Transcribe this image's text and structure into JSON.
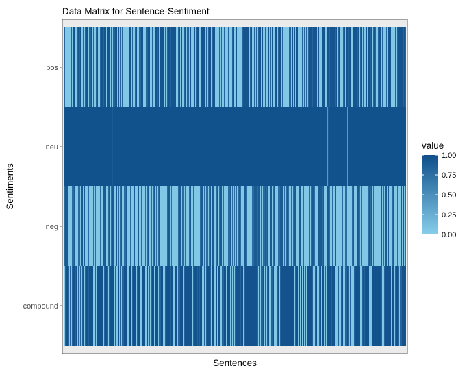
{
  "chart_data": {
    "type": "heatmap",
    "title": "Data Matrix for Sentence-Sentiment",
    "xlabel": "Sentences",
    "ylabel": "Sentiments",
    "rows": [
      "pos",
      "neu",
      "neg",
      "compound"
    ],
    "n_columns": 500,
    "color_scale": {
      "low": "#87ceeb",
      "high": "#0f4e8a",
      "domain": [
        0,
        1
      ]
    },
    "legend": {
      "title": "value",
      "placement": "right",
      "breaks": [
        "0.00",
        "0.25",
        "0.50",
        "0.75",
        "1.00"
      ]
    },
    "row_patterns": {
      "pos": {
        "high_fraction": 0.62,
        "high_value": 0.95,
        "low_value": 0.05
      },
      "neu": {
        "high_fraction": 0.996,
        "high_value": 0.98,
        "low_value": 0.4
      },
      "neg": {
        "high_fraction": 0.5,
        "high_value": 0.9,
        "low_value": 0.05
      },
      "compound": {
        "high_fraction": 0.72,
        "high_value": 0.97,
        "low_value": 0.05
      }
    },
    "grid": false,
    "panel_background": "#ebebeb"
  }
}
